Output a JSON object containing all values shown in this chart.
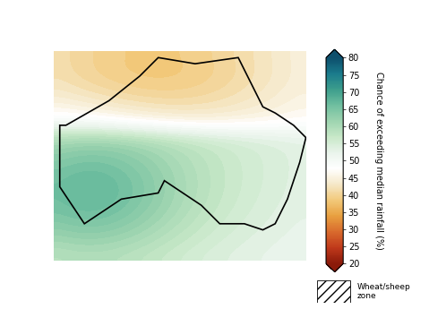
{
  "title": "",
  "colorbar_label": "Chance of exceeding median rainfall (%)",
  "colorbar_ticks": [
    20,
    25,
    30,
    35,
    40,
    45,
    50,
    55,
    60,
    65,
    70,
    75,
    80
  ],
  "colorbar_colors": [
    "#8B1A0A",
    "#C0391B",
    "#D96B2D",
    "#E8A040",
    "#F2C97A",
    "#F5E8C8",
    "#FFFFFF",
    "#EAF4EC",
    "#C8E8C8",
    "#9ED4B0",
    "#70BFA0",
    "#3D9E8C",
    "#1A7B8C",
    "#0D4F6C"
  ],
  "legend_hatch": "///",
  "legend_label": "Wheat/sheep\nzone",
  "fig_width": 4.79,
  "fig_height": 3.45,
  "dpi": 100,
  "map_bg": "#FFFFFF"
}
